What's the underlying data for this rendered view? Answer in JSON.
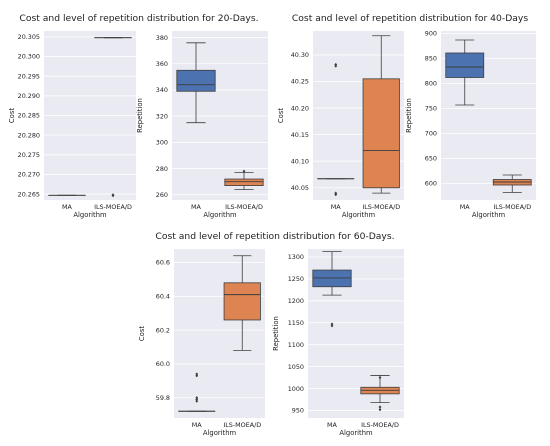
{
  "colors": {
    "ma": "#4c72b0",
    "ils": "#dd8452",
    "panel_bg": "#eaeaf2",
    "grid": "#ffffff",
    "line": "#3d3d3d"
  },
  "chart_data": [
    {
      "id": "c20",
      "type": "boxplot",
      "title": "Cost and level of repetition distribution for 20-Days.",
      "xlabel": "Algorithm",
      "ylabel": "Cost",
      "categories": [
        "MA",
        "ILS-MOEA/D"
      ],
      "ylim": [
        20.2635,
        20.3065
      ],
      "yticks": [
        20.265,
        20.27,
        20.275,
        20.28,
        20.285,
        20.29,
        20.295,
        20.3,
        20.305
      ],
      "yticklabels": [
        "20.265",
        "20.270",
        "20.275",
        "20.280",
        "20.285",
        "20.290",
        "20.295",
        "20.300",
        "20.305"
      ],
      "boxes": [
        {
          "name": "MA",
          "min": 20.2647,
          "q1": 20.2647,
          "median": 20.2647,
          "q3": 20.2647,
          "max": 20.2647,
          "outliers": []
        },
        {
          "name": "ILS-MOEA/D",
          "min": 20.3048,
          "q1": 20.3048,
          "median": 20.3048,
          "q3": 20.3048,
          "max": 20.3048,
          "outliers": [
            20.2648,
            20.2646
          ]
        }
      ]
    },
    {
      "id": "r20",
      "type": "boxplot",
      "title": "",
      "xlabel": "Algorithm",
      "ylabel": "Repetition",
      "categories": [
        "MA",
        "ILS-MOEA/D"
      ],
      "ylim": [
        256,
        385
      ],
      "yticks": [
        260,
        280,
        300,
        320,
        340,
        360,
        380
      ],
      "yticklabels": [
        "260",
        "280",
        "300",
        "320",
        "340",
        "360",
        "380"
      ],
      "boxes": [
        {
          "name": "MA",
          "min": 315,
          "q1": 339,
          "median": 344,
          "q3": 355,
          "max": 376,
          "outliers": []
        },
        {
          "name": "ILS-MOEA/D",
          "min": 264,
          "q1": 267,
          "median": 270,
          "q3": 272,
          "max": 277,
          "outliers": [
            278
          ]
        }
      ]
    },
    {
      "id": "c40",
      "type": "boxplot",
      "title": "Cost and level of repetition distribution for 40-Days",
      "xlabel": "Algorithm",
      "ylabel": "Cost",
      "categories": [
        "MA",
        "ILS-MOEA/D"
      ],
      "ylim": [
        40.027,
        40.345
      ],
      "yticks": [
        40.05,
        40.1,
        40.15,
        40.2,
        40.25,
        40.3
      ],
      "yticklabels": [
        "40.05",
        "40.10",
        "40.15",
        "40.20",
        "40.25",
        "40.30"
      ],
      "boxes": [
        {
          "name": "MA",
          "min": 40.067,
          "q1": 40.067,
          "median": 40.067,
          "q3": 40.067,
          "max": 40.067,
          "outliers": [
            40.282,
            40.279,
            40.04,
            40.037
          ]
        },
        {
          "name": "ILS-MOEA/D",
          "min": 40.04,
          "q1": 40.05,
          "median": 40.12,
          "q3": 40.255,
          "max": 40.336,
          "outliers": []
        }
      ]
    },
    {
      "id": "r40",
      "type": "boxplot",
      "title": "",
      "xlabel": "Algorithm",
      "ylabel": "Repetition",
      "categories": [
        "MA",
        "ILS-MOEA/D"
      ],
      "ylim": [
        567,
        905
      ],
      "yticks": [
        600,
        650,
        700,
        750,
        800,
        850,
        900
      ],
      "yticklabels": [
        "600",
        "650",
        "700",
        "750",
        "800",
        "850",
        "900"
      ],
      "boxes": [
        {
          "name": "MA",
          "min": 757,
          "q1": 812,
          "median": 833,
          "q3": 861,
          "max": 887,
          "outliers": []
        },
        {
          "name": "ILS-MOEA/D",
          "min": 582,
          "q1": 597,
          "median": 603,
          "q3": 608,
          "max": 617,
          "outliers": []
        }
      ]
    },
    {
      "id": "c60",
      "type": "boxplot",
      "title": "Cost and level of repetition distribution for 60-Days.",
      "xlabel": "Algorithm",
      "ylabel": "Cost",
      "categories": [
        "MA",
        "ILS-MOEA/D"
      ],
      "ylim": [
        59.68,
        60.68
      ],
      "yticks": [
        59.8,
        60.0,
        60.2,
        60.4,
        60.6
      ],
      "yticklabels": [
        "59.8",
        "60.0",
        "60.2",
        "60.4",
        "60.6"
      ],
      "boxes": [
        {
          "name": "MA",
          "min": 59.72,
          "q1": 59.72,
          "median": 59.72,
          "q3": 59.72,
          "max": 59.72,
          "outliers": [
            59.94,
            59.93,
            59.8,
            59.79,
            59.78
          ]
        },
        {
          "name": "ILS-MOEA/D",
          "min": 60.08,
          "q1": 60.26,
          "median": 60.41,
          "q3": 60.48,
          "max": 60.64,
          "outliers": []
        }
      ]
    },
    {
      "id": "r60",
      "type": "boxplot",
      "title": "",
      "xlabel": "Algorithm",
      "ylabel": "Repetition",
      "categories": [
        "MA",
        "ILS-MOEA/D"
      ],
      "ylim": [
        933,
        1318
      ],
      "yticks": [
        950,
        1000,
        1050,
        1100,
        1150,
        1200,
        1250,
        1300
      ],
      "yticklabels": [
        "950",
        "1000",
        "1050",
        "1100",
        "1150",
        "1200",
        "1250",
        "1300"
      ],
      "boxes": [
        {
          "name": "MA",
          "min": 1213,
          "q1": 1232,
          "median": 1252,
          "q3": 1270,
          "max": 1312,
          "outliers": [
            1147,
            1143
          ]
        },
        {
          "name": "ILS-MOEA/D",
          "min": 968,
          "q1": 988,
          "median": 996,
          "q3": 1003,
          "max": 1030,
          "outliers": [
            1025,
            958,
            952
          ]
        }
      ]
    }
  ]
}
